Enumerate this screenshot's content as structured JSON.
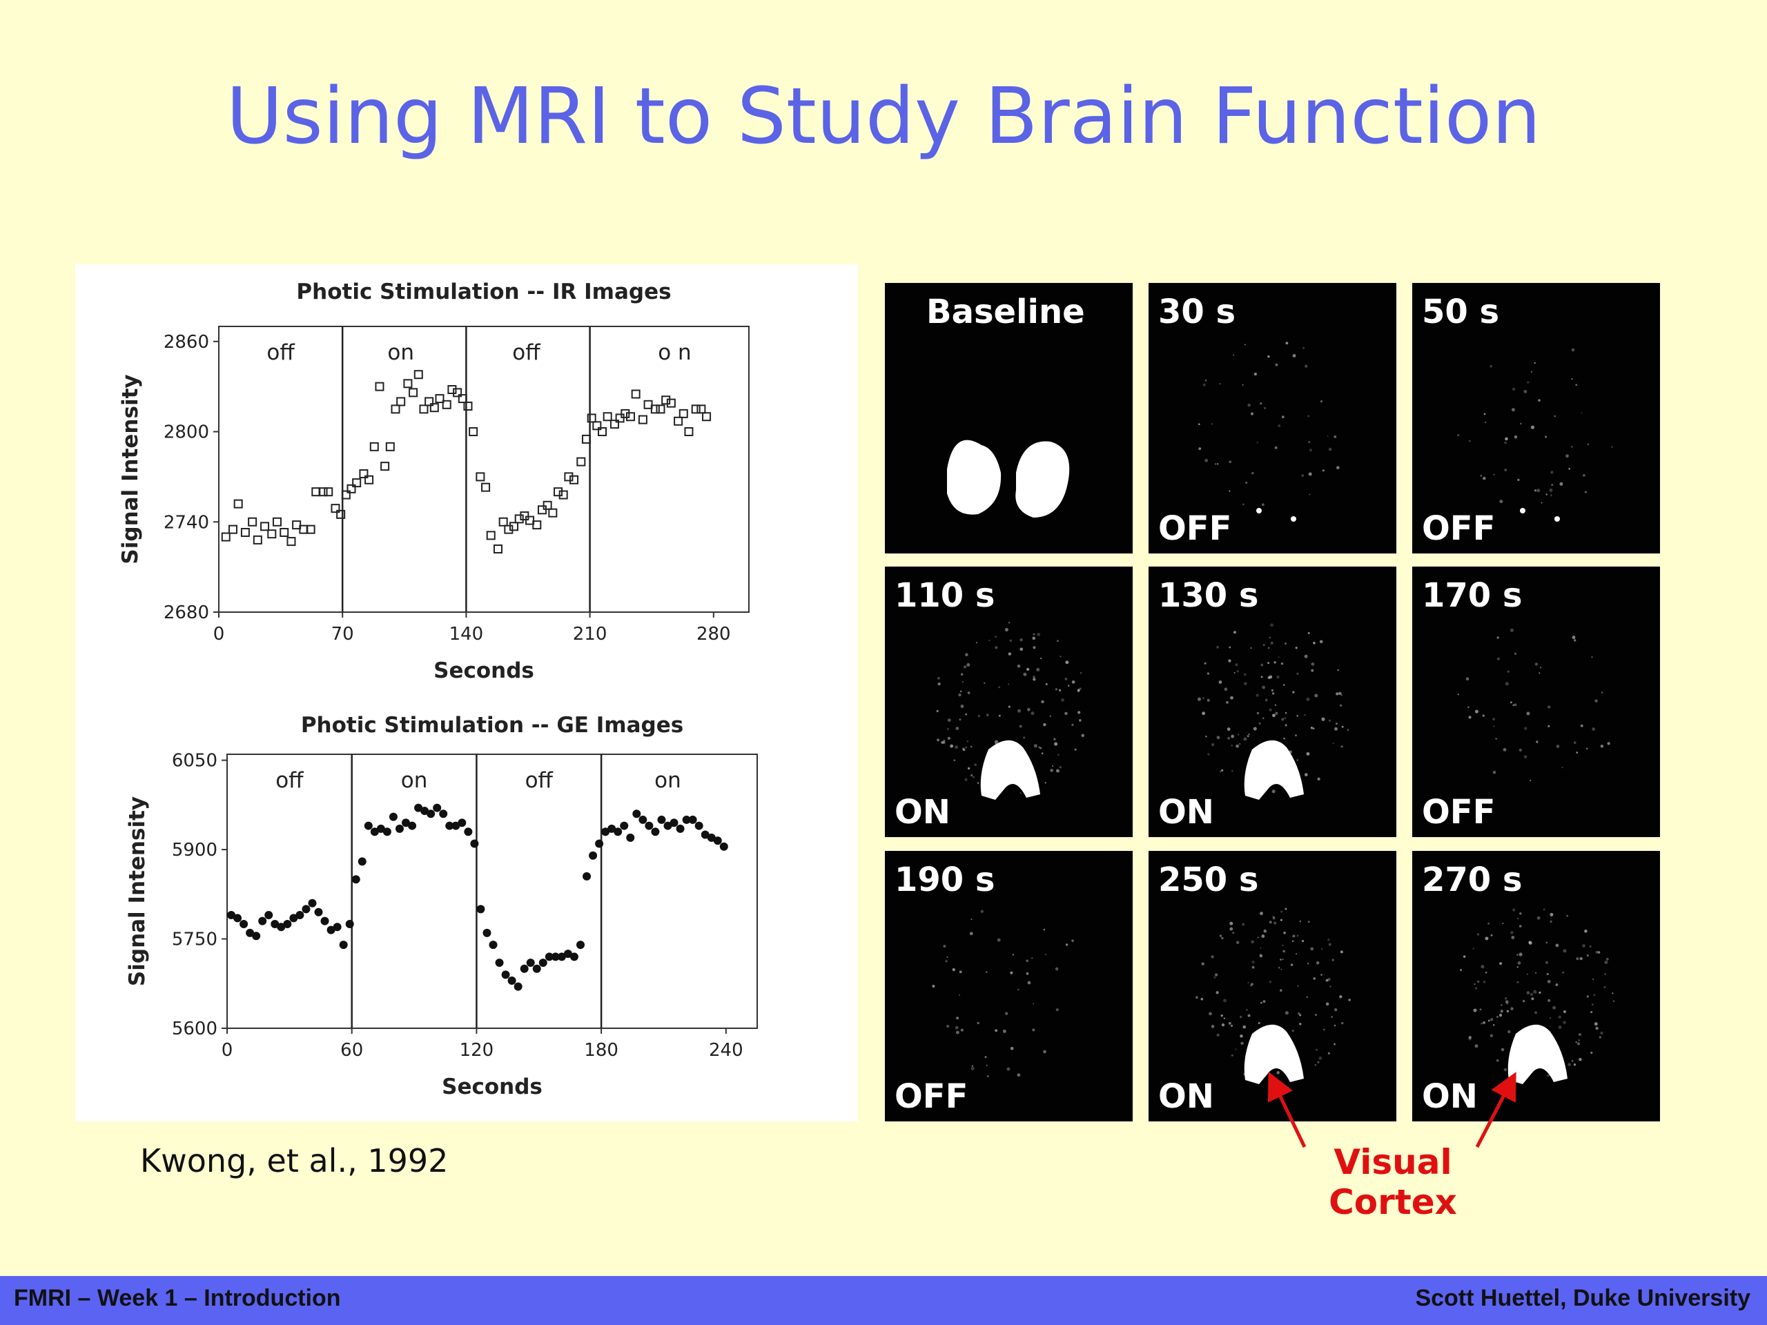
{
  "slide": {
    "title": "Using MRI to Study Brain Function",
    "citation": "Kwong, et al., 1992",
    "annotation": "Visual Cortex"
  },
  "footer": {
    "left": "FMRI – Week 1 – Introduction",
    "right": "Scott Huettel, Duke University"
  },
  "colors": {
    "background": "#fefed0",
    "title": "#5b63e6",
    "footer_bar": "#5b63f2",
    "annotation": "#e01010"
  },
  "chart_data": [
    {
      "type": "scatter",
      "title": "Photic Stimulation -- IR Images",
      "xlabel": "Seconds",
      "ylabel": "Signal Intensity",
      "marker": "open-square",
      "xlim": [
        0,
        300
      ],
      "ylim": [
        2680,
        2870
      ],
      "xticks": [
        0,
        70,
        140,
        210,
        280
      ],
      "yticks": [
        2680,
        2740,
        2800,
        2860
      ],
      "phase_boundaries": [
        70,
        140,
        210
      ],
      "phases": [
        {
          "label": "off",
          "center": 35
        },
        {
          "label": "on",
          "center": 103
        },
        {
          "label": "off",
          "center": 174
        },
        {
          "label": "o n",
          "center": 258
        }
      ],
      "series": [
        {
          "x": [
            4,
            8,
            11,
            15,
            19,
            22,
            26,
            30,
            33,
            37,
            41,
            44,
            48,
            52,
            55,
            59,
            62,
            66,
            69,
            72,
            75,
            78,
            82,
            85,
            88,
            91,
            94,
            97,
            100,
            103,
            107,
            110,
            113,
            116,
            119,
            122,
            125,
            129,
            132,
            135,
            138,
            141,
            144,
            148,
            151,
            154,
            158,
            161,
            164,
            167,
            170,
            173,
            176,
            180,
            183,
            186,
            189,
            192,
            195,
            198,
            201,
            205,
            208,
            211,
            214,
            217,
            220,
            224,
            227,
            230,
            233,
            236,
            240,
            243,
            247,
            250,
            253,
            256,
            260,
            263,
            266,
            270,
            273,
            276
          ],
          "y": [
            2730,
            2735,
            2752,
            2733,
            2740,
            2728,
            2737,
            2732,
            2740,
            2733,
            2727,
            2738,
            2735,
            2735,
            2760,
            2760,
            2760,
            2749,
            2745,
            2758,
            2762,
            2766,
            2772,
            2768,
            2790,
            2830,
            2777,
            2790,
            2815,
            2820,
            2832,
            2826,
            2838,
            2815,
            2820,
            2816,
            2822,
            2818,
            2828,
            2826,
            2822,
            2817,
            2800,
            2770,
            2763,
            2731,
            2722,
            2740,
            2735,
            2737,
            2742,
            2744,
            2741,
            2738,
            2748,
            2751,
            2746,
            2760,
            2758,
            2770,
            2768,
            2780,
            2795,
            2809,
            2804,
            2800,
            2810,
            2805,
            2809,
            2812,
            2810,
            2825,
            2808,
            2818,
            2815,
            2815,
            2821,
            2819,
            2807,
            2812,
            2800,
            2815,
            2815,
            2810
          ]
        }
      ]
    },
    {
      "type": "scatter",
      "title": "Photic Stimulation -- GE Images",
      "xlabel": "Seconds",
      "ylabel": "Signal Intensity",
      "marker": "filled-circle",
      "xlim": [
        0,
        255
      ],
      "ylim": [
        5600,
        6060
      ],
      "xticks": [
        0,
        60,
        120,
        180,
        240
      ],
      "yticks": [
        5600,
        5750,
        5900,
        6050
      ],
      "phase_boundaries": [
        60,
        120,
        180
      ],
      "phases": [
        {
          "label": "off",
          "center": 30
        },
        {
          "label": "on",
          "center": 90
        },
        {
          "label": "off",
          "center": 150
        },
        {
          "label": "on",
          "center": 212
        }
      ],
      "series": [
        {
          "x": [
            2,
            5,
            8,
            11,
            14,
            17,
            20,
            23,
            26,
            29,
            32,
            35,
            38,
            41,
            44,
            47,
            50,
            53,
            56,
            59,
            62,
            65,
            68,
            71,
            74,
            77,
            80,
            83,
            86,
            89,
            92,
            95,
            98,
            101,
            104,
            107,
            110,
            113,
            116,
            119,
            122,
            125,
            128,
            131,
            134,
            137,
            140,
            143,
            146,
            149,
            152,
            155,
            158,
            161,
            164,
            167,
            170,
            173,
            176,
            179,
            182,
            185,
            188,
            191,
            194,
            197,
            200,
            203,
            206,
            209,
            212,
            215,
            218,
            221,
            224,
            227,
            230,
            233,
            236,
            239
          ],
          "y": [
            5790,
            5785,
            5775,
            5760,
            5755,
            5780,
            5790,
            5775,
            5770,
            5775,
            5785,
            5790,
            5800,
            5810,
            5795,
            5780,
            5765,
            5770,
            5740,
            5775,
            5850,
            5880,
            5940,
            5930,
            5935,
            5930,
            5955,
            5935,
            5945,
            5940,
            5970,
            5965,
            5960,
            5970,
            5960,
            5940,
            5940,
            5945,
            5930,
            5910,
            5800,
            5760,
            5740,
            5710,
            5690,
            5680,
            5670,
            5700,
            5710,
            5700,
            5710,
            5720,
            5720,
            5720,
            5725,
            5720,
            5740,
            5855,
            5890,
            5910,
            5930,
            5935,
            5930,
            5940,
            5920,
            5960,
            5950,
            5940,
            5930,
            5950,
            5940,
            5945,
            5935,
            5950,
            5950,
            5940,
            5925,
            5920,
            5915,
            5905
          ]
        }
      ]
    }
  ],
  "scans": [
    {
      "time": "Baseline",
      "state": ""
    },
    {
      "time": "30 s",
      "state": "OFF"
    },
    {
      "time": "50 s",
      "state": "OFF"
    },
    {
      "time": "110 s",
      "state": "ON"
    },
    {
      "time": "130 s",
      "state": "ON"
    },
    {
      "time": "170 s",
      "state": "OFF"
    },
    {
      "time": "190 s",
      "state": "OFF"
    },
    {
      "time": "250 s",
      "state": "ON"
    },
    {
      "time": "270 s",
      "state": "ON"
    }
  ]
}
